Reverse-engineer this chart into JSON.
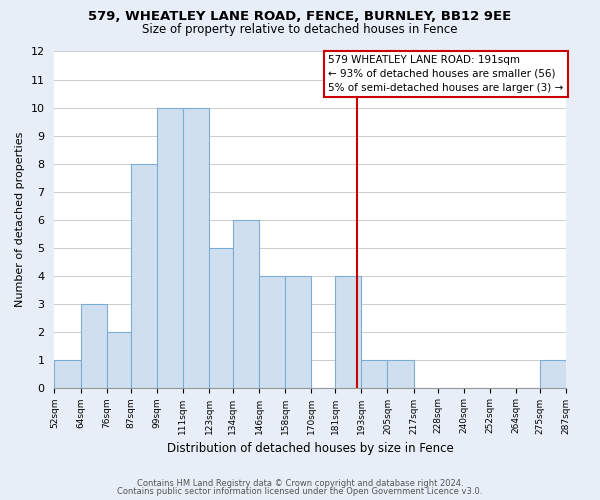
{
  "title": "579, WHEATLEY LANE ROAD, FENCE, BURNLEY, BB12 9EE",
  "subtitle": "Size of property relative to detached houses in Fence",
  "xlabel": "Distribution of detached houses by size in Fence",
  "ylabel": "Number of detached properties",
  "bar_edges": [
    52,
    64,
    76,
    87,
    99,
    111,
    123,
    134,
    146,
    158,
    170,
    181,
    193,
    205,
    217,
    228,
    240,
    252,
    264,
    275,
    287
  ],
  "bar_heights": [
    1,
    3,
    2,
    8,
    10,
    10,
    5,
    6,
    4,
    4,
    0,
    4,
    1,
    1,
    0,
    0,
    0,
    0,
    0,
    1
  ],
  "tick_labels": [
    "52sqm",
    "64sqm",
    "76sqm",
    "87sqm",
    "99sqm",
    "111sqm",
    "123sqm",
    "134sqm",
    "146sqm",
    "158sqm",
    "170sqm",
    "181sqm",
    "193sqm",
    "205sqm",
    "217sqm",
    "228sqm",
    "240sqm",
    "252sqm",
    "264sqm",
    "275sqm",
    "287sqm"
  ],
  "bar_color": "#cfdff0",
  "bar_edge_color": "#7dadd4",
  "property_line_x": 191,
  "property_line_color": "#cc0000",
  "annotation_title": "579 WHEATLEY LANE ROAD: 191sqm",
  "annotation_line1": "← 93% of detached houses are smaller (56)",
  "annotation_line2": "5% of semi-detached houses are larger (3) →",
  "ylim": [
    0,
    12
  ],
  "yticks": [
    0,
    1,
    2,
    3,
    4,
    5,
    6,
    7,
    8,
    9,
    10,
    11,
    12
  ],
  "footer1": "Contains HM Land Registry data © Crown copyright and database right 2024.",
  "footer2": "Contains public sector information licensed under the Open Government Licence v3.0.",
  "fig_bg_color": "#e8eef7",
  "plot_bg_color": "#ffffff",
  "grid_color": "#cccccc"
}
